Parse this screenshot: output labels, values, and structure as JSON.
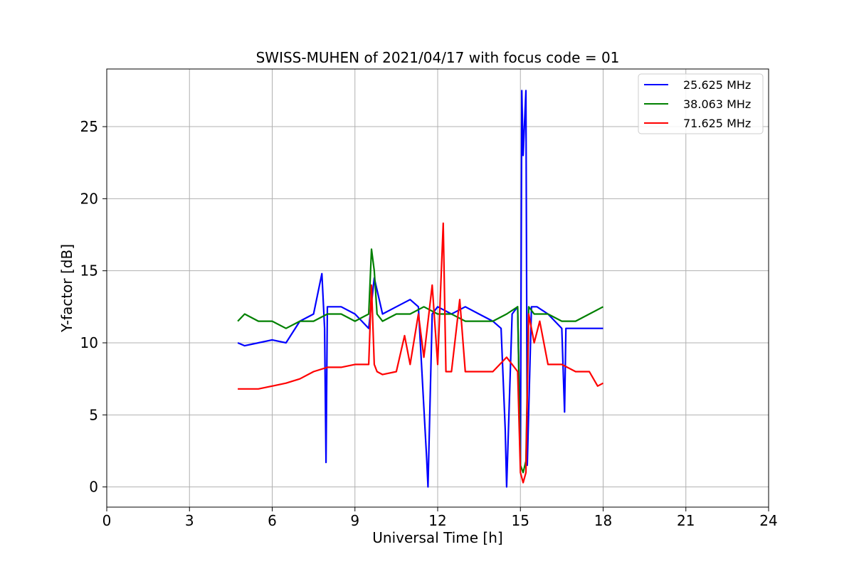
{
  "chart_data": {
    "type": "line",
    "title": "SWISS-MUHEN of 2021/04/17 with focus code = 01",
    "xlabel": "Universal Time [h]",
    "ylabel": "Y-factor [dB]",
    "xlim": [
      0,
      24
    ],
    "ylim": [
      -1.4,
      29
    ],
    "xticks": [
      0,
      3,
      6,
      9,
      12,
      15,
      18,
      21,
      24
    ],
    "yticks": [
      0,
      5,
      10,
      15,
      20,
      25
    ],
    "grid": true,
    "legend_position": "top-right",
    "series": [
      {
        "name": "25.625 MHz",
        "color": "#0000ff",
        "x": [
          4.75,
          5.0,
          5.5,
          6.0,
          6.5,
          7.0,
          7.5,
          7.8,
          7.9,
          7.95,
          8.0,
          8.5,
          9.0,
          9.5,
          9.7,
          10.0,
          10.5,
          11.0,
          11.3,
          11.5,
          11.6,
          11.65,
          11.8,
          12.0,
          12.5,
          13.0,
          13.5,
          14.0,
          14.3,
          14.45,
          14.5,
          14.7,
          14.9,
          15.0,
          15.05,
          15.1,
          15.2,
          15.25,
          15.4,
          15.6,
          16.0,
          16.5,
          16.6,
          16.65,
          17.0,
          17.5,
          18.0
        ],
        "y": [
          10.0,
          9.8,
          10.0,
          10.2,
          10.0,
          11.5,
          12.0,
          14.8,
          11.0,
          1.7,
          12.5,
          12.5,
          12.0,
          11.0,
          14.5,
          12.0,
          12.5,
          13.0,
          12.5,
          5.5,
          2.0,
          0.0,
          12.0,
          12.5,
          12.0,
          12.5,
          12.0,
          11.5,
          11.0,
          4.0,
          0.0,
          12.0,
          12.5,
          1.5,
          27.5,
          23.0,
          27.5,
          1.5,
          12.5,
          12.5,
          12.0,
          11.0,
          5.2,
          11.0,
          11.0,
          11.0,
          11.0
        ]
      },
      {
        "name": "38.063 MHz",
        "color": "#008000",
        "x": [
          4.75,
          5.0,
          5.5,
          6.0,
          6.5,
          7.0,
          7.5,
          8.0,
          8.5,
          9.0,
          9.5,
          9.6,
          9.7,
          9.8,
          10.0,
          10.5,
          11.0,
          11.5,
          12.0,
          12.5,
          13.0,
          13.5,
          14.0,
          14.5,
          14.9,
          15.0,
          15.1,
          15.2,
          15.3,
          15.5,
          16.0,
          16.5,
          17.0,
          17.5,
          18.0
        ],
        "y": [
          11.5,
          12.0,
          11.5,
          11.5,
          11.0,
          11.5,
          11.5,
          12.0,
          12.0,
          11.5,
          12.0,
          16.5,
          15.0,
          12.0,
          11.5,
          12.0,
          12.0,
          12.5,
          12.0,
          12.0,
          11.5,
          11.5,
          11.5,
          12.0,
          12.5,
          1.5,
          1.0,
          1.8,
          12.5,
          12.0,
          12.0,
          11.5,
          11.5,
          12.0,
          12.5
        ]
      },
      {
        "name": "71.625 MHz",
        "color": "#ff0000",
        "x": [
          4.75,
          5.0,
          5.5,
          6.0,
          6.5,
          7.0,
          7.5,
          8.0,
          8.5,
          9.0,
          9.5,
          9.6,
          9.7,
          9.8,
          10.0,
          10.5,
          10.8,
          11.0,
          11.3,
          11.5,
          11.8,
          12.0,
          12.2,
          12.3,
          12.5,
          12.8,
          13.0,
          13.5,
          14.0,
          14.5,
          14.9,
          15.0,
          15.1,
          15.2,
          15.3,
          15.5,
          15.7,
          16.0,
          16.5,
          17.0,
          17.5,
          17.8,
          18.0
        ],
        "y": [
          6.8,
          6.8,
          6.8,
          7.0,
          7.2,
          7.5,
          8.0,
          8.3,
          8.3,
          8.5,
          8.5,
          14.0,
          8.5,
          8.0,
          7.8,
          8.0,
          10.5,
          8.5,
          12.0,
          9.0,
          14.0,
          8.5,
          18.3,
          8.0,
          8.0,
          13.0,
          8.0,
          8.0,
          8.0,
          9.0,
          8.0,
          1.0,
          0.3,
          1.0,
          12.0,
          10.0,
          11.5,
          8.5,
          8.5,
          8.0,
          8.0,
          7.0,
          7.2
        ]
      }
    ]
  }
}
